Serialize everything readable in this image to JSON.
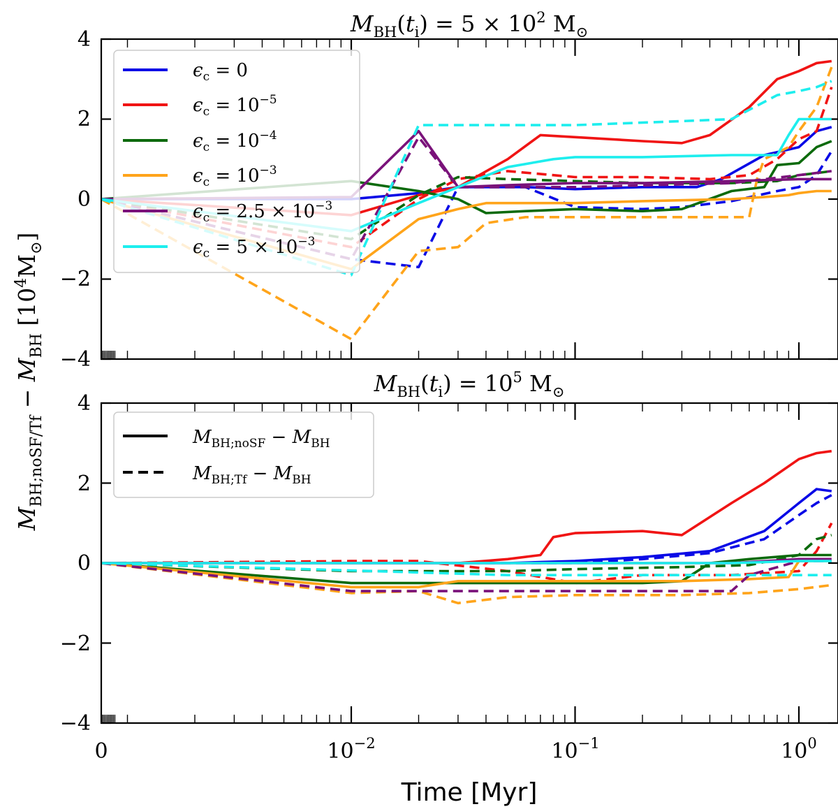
{
  "chart_data": [
    {
      "type": "line",
      "title": "M_BH(t_i) = 5 × 10^2 M_⊙",
      "xlabel": "",
      "ylabel": "M_BH;noSF/Tf − M_BH [10^4 M_⊙]",
      "xscale": "symlog",
      "xlim": [
        0,
        1.4
      ],
      "ylim": [
        -4,
        4
      ],
      "yticks": [
        -4,
        -2,
        0,
        2,
        4
      ],
      "ytick_labels": [
        "−4",
        "−2",
        "0",
        "2",
        "4"
      ],
      "legend": {
        "location": "upper-left",
        "entries": [
          "ε_c = 0",
          "ε_c = 10^−5",
          "ε_c = 10^−4",
          "ε_c = 10^−3",
          "ε_c = 2.5 × 10^−3",
          "ε_c = 5 × 10^−3"
        ]
      },
      "series": [
        {
          "name": "ε_c = 0 (noSF)",
          "color": "#0a0ae6",
          "style": "solid",
          "x": [
            0,
            0.01,
            0.02,
            0.03,
            0.06,
            0.1,
            0.2,
            0.35,
            0.45,
            0.7,
            1.0,
            1.2,
            1.4
          ],
          "y": [
            0,
            0,
            0.15,
            0.3,
            0.3,
            0.25,
            0.3,
            0.3,
            0.5,
            1.1,
            1.3,
            1.7,
            1.8
          ]
        },
        {
          "name": "ε_c = 0 (Tf)",
          "color": "#0a0ae6",
          "style": "dashed",
          "x": [
            0,
            0.01,
            0.02,
            0.03,
            0.06,
            0.1,
            0.2,
            0.3,
            0.5,
            0.8,
            1.0,
            1.2,
            1.4
          ],
          "y": [
            0,
            -1.5,
            -1.7,
            0.3,
            0.3,
            -0.2,
            -0.25,
            -0.2,
            -0.05,
            0.2,
            0.3,
            0.6,
            1.2
          ]
        },
        {
          "name": "ε_c = 10^−5 (noSF)",
          "color": "#f01414",
          "style": "solid",
          "x": [
            0,
            0.01,
            0.02,
            0.03,
            0.05,
            0.07,
            0.1,
            0.2,
            0.3,
            0.4,
            0.6,
            0.8,
            1.0,
            1.2,
            1.4
          ],
          "y": [
            0,
            -0.4,
            0.1,
            0.3,
            1.0,
            1.6,
            1.55,
            1.45,
            1.4,
            1.6,
            2.3,
            3.0,
            3.2,
            3.4,
            3.45
          ]
        },
        {
          "name": "ε_c = 10^−5 (Tf)",
          "color": "#f01414",
          "style": "dashed",
          "x": [
            0,
            0.01,
            0.02,
            0.03,
            0.05,
            0.08,
            0.1,
            0.2,
            0.4,
            0.6,
            0.8,
            1.0,
            1.2,
            1.4
          ],
          "y": [
            0,
            -1.2,
            0.0,
            0.5,
            0.7,
            0.6,
            0.55,
            0.55,
            0.5,
            0.6,
            1.0,
            1.5,
            1.7,
            2.8
          ]
        },
        {
          "name": "ε_c = 10^−4 (noSF)",
          "color": "#0c6a0c",
          "style": "solid",
          "x": [
            0,
            0.01,
            0.02,
            0.03,
            0.04,
            0.06,
            0.1,
            0.2,
            0.3,
            0.5,
            0.7,
            0.8,
            1.0,
            1.2,
            1.4
          ],
          "y": [
            0,
            0.45,
            0.2,
            0.0,
            -0.35,
            -0.3,
            -0.25,
            -0.3,
            -0.25,
            0.2,
            0.3,
            0.85,
            0.9,
            1.3,
            1.45
          ]
        },
        {
          "name": "ε_c = 10^−4 (Tf)",
          "color": "#0c6a0c",
          "style": "dashed",
          "x": [
            0,
            0.01,
            0.02,
            0.03,
            0.05,
            0.1,
            0.2,
            0.5,
            0.8,
            1.0,
            1.2,
            1.4
          ],
          "y": [
            0,
            -1.0,
            0.1,
            0.55,
            0.5,
            0.45,
            0.4,
            0.4,
            0.45,
            0.6,
            0.65,
            0.7
          ]
        },
        {
          "name": "ε_c = 10^−3 (noSF)",
          "color": "#ffa41a",
          "style": "solid",
          "x": [
            0,
            0.01,
            0.02,
            0.03,
            0.04,
            0.06,
            0.1,
            0.2,
            0.5,
            0.7,
            0.9,
            1.0,
            1.2,
            1.4
          ],
          "y": [
            0,
            -1.75,
            -0.5,
            -0.25,
            -0.1,
            -0.1,
            -0.1,
            -0.05,
            0.0,
            0.05,
            0.1,
            0.15,
            0.2,
            0.2
          ]
        },
        {
          "name": "ε_c = 10^−3 (Tf)",
          "color": "#ffa41a",
          "style": "dashed",
          "x": [
            0,
            0.01,
            0.02,
            0.03,
            0.04,
            0.06,
            0.1,
            0.3,
            0.6,
            0.65,
            0.7,
            0.9,
            1.0,
            1.2,
            1.4
          ],
          "y": [
            0,
            -3.5,
            -1.3,
            -1.2,
            -0.6,
            -0.45,
            -0.45,
            -0.45,
            -0.45,
            0.5,
            1.0,
            1.3,
            1.7,
            2.3,
            3.3
          ]
        },
        {
          "name": "ε_c = 2.5 × 10^−3 (noSF)",
          "color": "#7a127a",
          "style": "solid",
          "x": [
            0,
            0.01,
            0.02,
            0.03,
            0.05,
            0.1,
            0.2,
            0.5,
            1.0,
            1.4
          ],
          "y": [
            0,
            0.05,
            1.7,
            0.3,
            0.35,
            0.4,
            0.4,
            0.45,
            0.5,
            0.5
          ]
        },
        {
          "name": "ε_c = 2.5 × 10^−3 (Tf)",
          "color": "#7a127a",
          "style": "dashed",
          "x": [
            0,
            0.01,
            0.02,
            0.03,
            0.05,
            0.1,
            0.5,
            1.0,
            1.4
          ],
          "y": [
            0,
            -1.5,
            1.55,
            0.3,
            0.3,
            0.3,
            0.4,
            0.6,
            0.7
          ]
        },
        {
          "name": "ε_c = 5 × 10^−3 (noSF)",
          "color": "#1eeeee",
          "style": "solid",
          "x": [
            0,
            0.01,
            0.02,
            0.03,
            0.05,
            0.08,
            0.1,
            0.2,
            0.5,
            0.8,
            0.9,
            1.0,
            1.4
          ],
          "y": [
            0,
            -0.8,
            -0.1,
            0.3,
            0.8,
            1.0,
            1.05,
            1.05,
            1.1,
            1.1,
            1.6,
            2.0,
            2.0
          ]
        },
        {
          "name": "ε_c = 5 × 10^−3 (Tf)",
          "color": "#1eeeee",
          "style": "dashed",
          "x": [
            0,
            0.01,
            0.02,
            0.1,
            0.3,
            0.5,
            0.8,
            1.0,
            1.2,
            1.4
          ],
          "y": [
            0,
            -1.9,
            1.85,
            1.85,
            1.95,
            2.0,
            2.6,
            2.7,
            2.8,
            2.95
          ]
        }
      ]
    },
    {
      "type": "line",
      "title": "M_BH(t_i) = 10^5 M_⊙",
      "xlabel": "Time [Myr]",
      "ylabel": "M_BH;noSF/Tf − M_BH [10^4 M_⊙]",
      "xscale": "symlog",
      "xlim": [
        0,
        1.4
      ],
      "ylim": [
        -4,
        4
      ],
      "yticks": [
        -4,
        -2,
        0,
        2,
        4
      ],
      "ytick_labels": [
        "−4",
        "−2",
        "0",
        "2",
        "4"
      ],
      "xticks": [
        0,
        0.01,
        0.1,
        1
      ],
      "xtick_labels": [
        "0",
        "10^−2",
        "10^−1",
        "10^0"
      ],
      "legend": {
        "location": "upper-left",
        "entries": [
          "M_BH;noSF − M_BH",
          "M_BH;Tf − M_BH"
        ]
      },
      "series": [
        {
          "name": "ε_c = 0 (noSF)",
          "color": "#0a0ae6",
          "style": "solid",
          "x": [
            0,
            0.01,
            0.05,
            0.1,
            0.2,
            0.4,
            0.7,
            1.0,
            1.2,
            1.4
          ],
          "y": [
            0,
            0,
            0,
            0.05,
            0.15,
            0.3,
            0.8,
            1.5,
            1.85,
            1.8
          ]
        },
        {
          "name": "ε_c = 0 (Tf)",
          "color": "#0a0ae6",
          "style": "dashed",
          "x": [
            0,
            0.01,
            0.05,
            0.1,
            0.2,
            0.4,
            0.7,
            1.0,
            1.2,
            1.4
          ],
          "y": [
            0,
            0,
            0,
            0.0,
            0.1,
            0.25,
            0.6,
            1.2,
            1.5,
            1.7
          ]
        },
        {
          "name": "ε_c = 10^−5 (noSF)",
          "color": "#f01414",
          "style": "solid",
          "x": [
            0,
            0.01,
            0.03,
            0.05,
            0.07,
            0.08,
            0.1,
            0.2,
            0.3,
            0.5,
            0.7,
            1.0,
            1.2,
            1.4
          ],
          "y": [
            0,
            0,
            0,
            0.1,
            0.2,
            0.65,
            0.75,
            0.8,
            0.7,
            1.5,
            2.0,
            2.6,
            2.75,
            2.8
          ]
        },
        {
          "name": "ε_c = 10^−5 (Tf)",
          "color": "#f01414",
          "style": "dashed",
          "x": [
            0,
            0.01,
            0.02,
            0.05,
            0.1,
            0.2,
            0.5,
            1.0,
            1.2,
            1.4
          ],
          "y": [
            0,
            0.05,
            0.05,
            -0.2,
            -0.5,
            -0.3,
            -0.3,
            -0.2,
            0.3,
            1.0
          ]
        },
        {
          "name": "ε_c = 10^−4 (noSF)",
          "color": "#0c6a0c",
          "style": "solid",
          "x": [
            0,
            0.01,
            0.02,
            0.05,
            0.1,
            0.2,
            0.3,
            0.4,
            0.6,
            1.0,
            1.4
          ],
          "y": [
            0,
            -0.5,
            -0.5,
            -0.5,
            -0.5,
            -0.5,
            -0.45,
            0.0,
            0.1,
            0.2,
            0.2
          ]
        },
        {
          "name": "ε_c = 10^−4 (Tf)",
          "color": "#0c6a0c",
          "style": "dashed",
          "x": [
            0,
            0.01,
            0.05,
            0.1,
            0.3,
            0.6,
            1.0,
            1.2,
            1.4
          ],
          "y": [
            0,
            -0.2,
            -0.2,
            -0.15,
            -0.1,
            -0.05,
            0.2,
            0.6,
            0.7
          ]
        },
        {
          "name": "ε_c = 10^−3 (noSF)",
          "color": "#ffa41a",
          "style": "solid",
          "x": [
            0,
            0.01,
            0.02,
            0.03,
            0.05,
            0.1,
            0.3,
            0.6,
            0.9,
            1.0,
            1.4
          ],
          "y": [
            0,
            -0.6,
            -0.6,
            -0.45,
            -0.45,
            -0.45,
            -0.45,
            -0.4,
            -0.35,
            0.05,
            0.05
          ]
        },
        {
          "name": "ε_c = 10^−3 (Tf)",
          "color": "#ffa41a",
          "style": "dashed",
          "x": [
            0,
            0.01,
            0.02,
            0.03,
            0.05,
            0.1,
            0.3,
            0.6,
            1.0,
            1.4
          ],
          "y": [
            0,
            -0.75,
            -0.7,
            -1.0,
            -0.85,
            -0.8,
            -0.8,
            -0.75,
            -0.65,
            -0.55
          ]
        },
        {
          "name": "ε_c = 2.5 × 10^−3 (noSF)",
          "color": "#7a127a",
          "style": "solid",
          "x": [
            0,
            0.05,
            0.1,
            0.5,
            1.0,
            1.4
          ],
          "y": [
            0,
            0,
            0,
            0,
            0.1,
            0.1
          ]
        },
        {
          "name": "ε_c = 2.5 × 10^−3 (Tf)",
          "color": "#7a127a",
          "style": "dashed",
          "x": [
            0,
            0.01,
            0.05,
            0.1,
            0.3,
            0.5,
            0.6,
            1.0,
            1.4
          ],
          "y": [
            0,
            -0.7,
            -0.7,
            -0.7,
            -0.7,
            -0.7,
            -0.3,
            0.05,
            0.05
          ]
        },
        {
          "name": "ε_c = 5 × 10^−3 (noSF)",
          "color": "#1eeeee",
          "style": "solid",
          "x": [
            0,
            0.1,
            0.5,
            1.0,
            1.4
          ],
          "y": [
            0,
            0,
            0,
            0.05,
            0.05
          ]
        },
        {
          "name": "ε_c = 5 × 10^−3 (Tf)",
          "color": "#1eeeee",
          "style": "dashed",
          "x": [
            0,
            0.05,
            0.1,
            0.5,
            1.0,
            1.4
          ],
          "y": [
            0,
            -0.3,
            -0.3,
            -0.3,
            -0.3,
            -0.3
          ]
        }
      ]
    }
  ]
}
